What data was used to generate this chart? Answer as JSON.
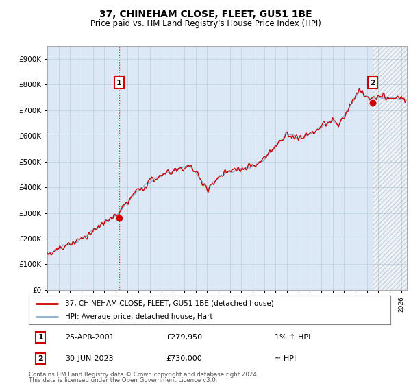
{
  "title": "37, CHINEHAM CLOSE, FLEET, GU51 1BE",
  "subtitle": "Price paid vs. HM Land Registry's House Price Index (HPI)",
  "ylim": [
    0,
    950000
  ],
  "yticks": [
    0,
    100000,
    200000,
    300000,
    400000,
    500000,
    600000,
    700000,
    800000,
    900000
  ],
  "ytick_labels": [
    "£0",
    "£100K",
    "£200K",
    "£300K",
    "£400K",
    "£500K",
    "£600K",
    "£700K",
    "£800K",
    "£900K"
  ],
  "line_color": "#cc0000",
  "hpi_color": "#88aacc",
  "background_color": "#ffffff",
  "plot_bg_color": "#dce8f5",
  "grid_color": "#b8cfe0",
  "annotation1": {
    "label": "1",
    "date": "25-APR-2001",
    "price": 279950,
    "note": "1% ↑ HPI",
    "x_year": 2001.3
  },
  "annotation2": {
    "label": "2",
    "date": "30-JUN-2023",
    "price": 730000,
    "note": "≈ HPI",
    "x_year": 2023.5
  },
  "legend_line1": "37, CHINEHAM CLOSE, FLEET, GU51 1BE (detached house)",
  "legend_line2": "HPI: Average price, detached house, Hart",
  "footer1": "Contains HM Land Registry data © Crown copyright and database right 2024.",
  "footer2": "This data is licensed under the Open Government Licence v3.0.",
  "xmin": 1995.0,
  "xmax": 2026.5
}
